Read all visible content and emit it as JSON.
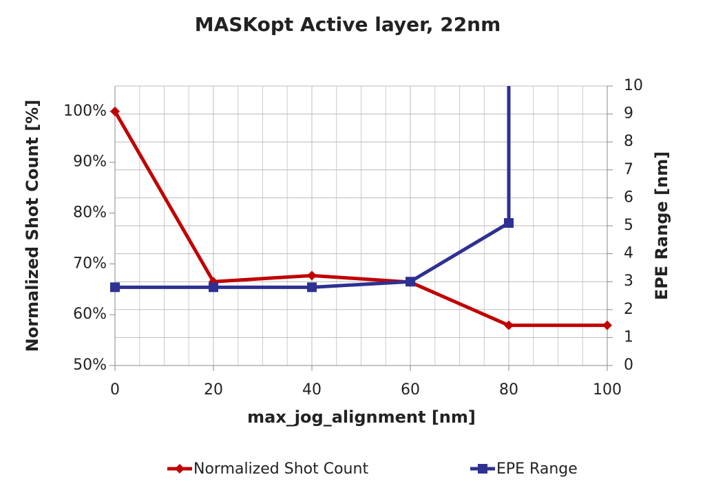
{
  "chart_data": {
    "type": "line",
    "title": "MASKopt Active layer, 22nm",
    "x_label": "max_jog_alignment [nm]",
    "y_label": "Normalized Shot Count [%]",
    "y2_label": "EPE Range [nm]",
    "xlim": [
      0,
      100
    ],
    "xticks": [
      0,
      20,
      40,
      60,
      80,
      100
    ],
    "ylim": [
      50,
      105
    ],
    "yticks": [
      {
        "value": 50,
        "label": "50%"
      },
      {
        "value": 60,
        "label": "60%"
      },
      {
        "value": 70,
        "label": "70%"
      },
      {
        "value": 80,
        "label": "80%"
      },
      {
        "value": 90,
        "label": "90%"
      },
      {
        "value": 100,
        "label": "100%"
      }
    ],
    "y2lim": [
      0,
      10
    ],
    "y2ticks": [
      0,
      1,
      2,
      3,
      4,
      5,
      6,
      7,
      8,
      9,
      10
    ],
    "grid": true,
    "legend": "bottom",
    "series": [
      {
        "name": "Normalized Shot Count",
        "color": "#c00000",
        "marker": "diamond",
        "x": [
          0,
          20,
          40,
          60,
          80,
          100
        ],
        "values": [
          100,
          66.5,
          67.7,
          66.4,
          57.9,
          57.9
        ]
      },
      {
        "name": "EPE Range",
        "color": "#2e3192",
        "marker": "square",
        "axis": "y2",
        "x": [
          0,
          20,
          40,
          60,
          80,
          80
        ],
        "values": [
          2.8,
          2.8,
          2.8,
          3.0,
          5.1,
          10
        ]
      }
    ]
  }
}
